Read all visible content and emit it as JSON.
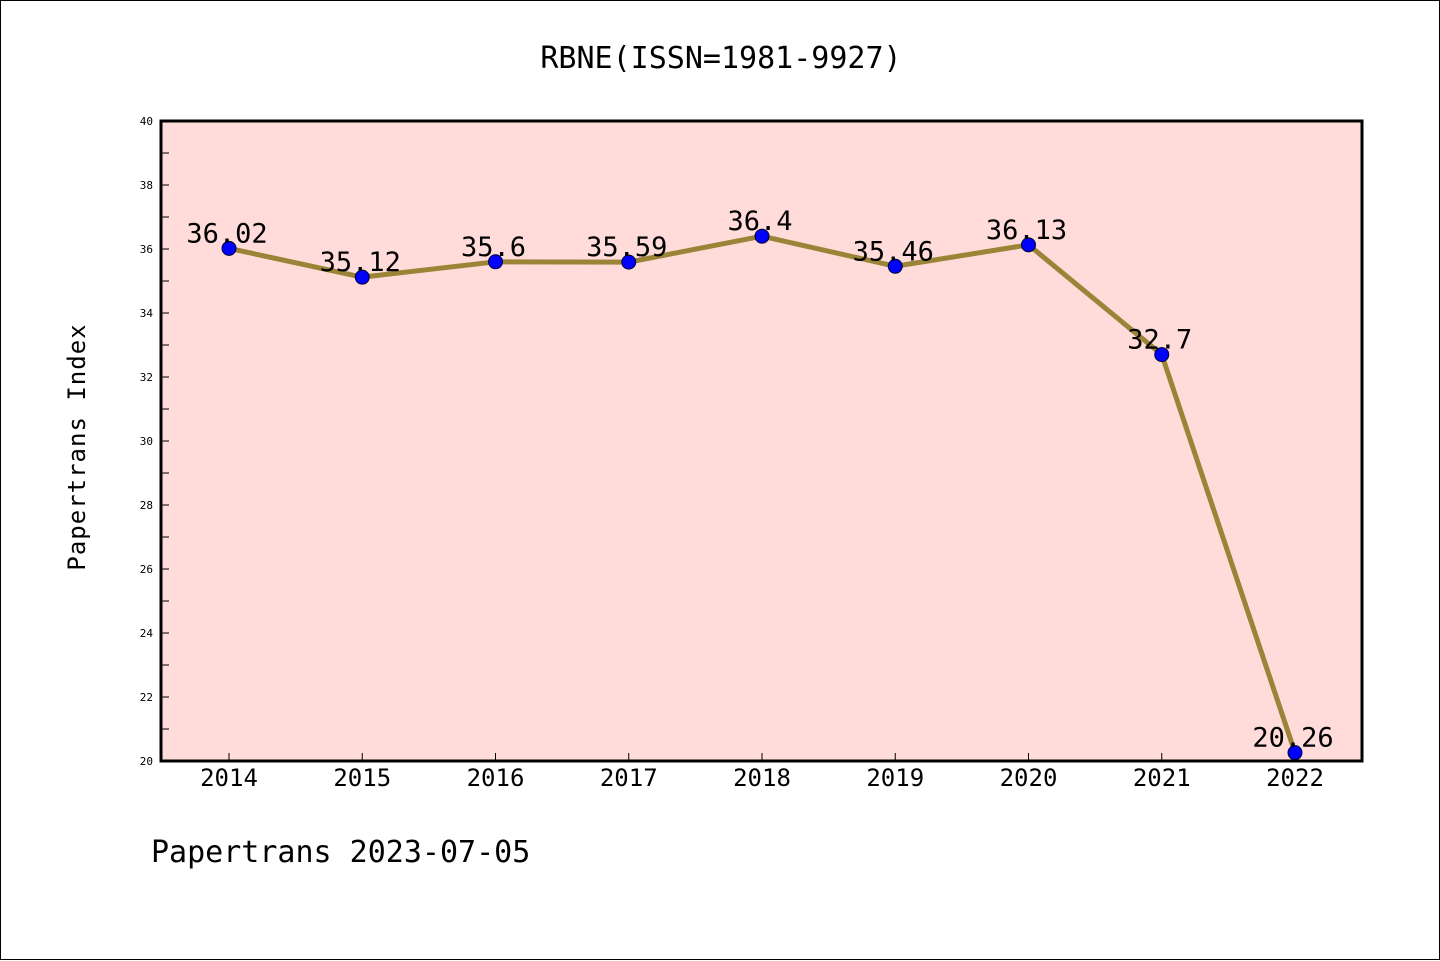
{
  "chart_data": {
    "type": "line",
    "title": "RBNE(ISSN=1981-9927)",
    "xlabel": "",
    "ylabel": "Papertrans Index",
    "categories": [
      "2014",
      "2015",
      "2016",
      "2017",
      "2018",
      "2019",
      "2020",
      "2021",
      "2022"
    ],
    "series": [
      {
        "values": [
          36.02,
          35.12,
          35.6,
          35.59,
          36.4,
          35.46,
          36.13,
          32.7,
          20.26
        ],
        "labels": [
          "36.02",
          "35.12",
          "35.6",
          "35.59",
          "36.4",
          "35.46",
          "36.13",
          "32.7",
          "20.26"
        ],
        "line_color": "#9b8437",
        "marker_color": "#0000ff"
      }
    ],
    "ylim": [
      20,
      40
    ],
    "yticks": [
      20,
      22,
      24,
      26,
      28,
      30,
      32,
      34,
      36,
      38,
      40
    ],
    "plot_background": "#ffdcd9",
    "grid": false,
    "legend": "none"
  },
  "footer": "Papertrans 2023-07-05"
}
